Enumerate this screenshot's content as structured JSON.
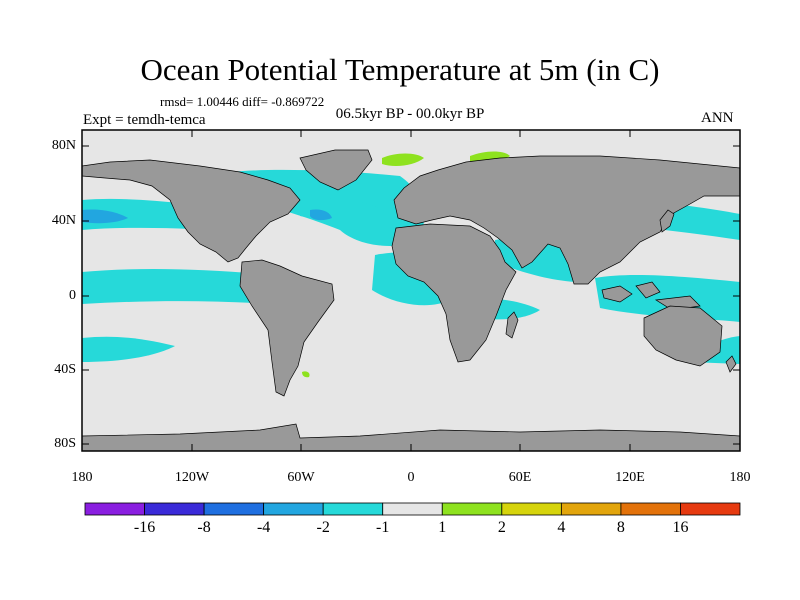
{
  "title": "Ocean Potential Temperature at 5m (in C)",
  "stats_line": "rmsd= 1.00446 diff= -0.869722",
  "experiment_label": "Expt = temdh-temca",
  "period_label": "06.5kyr BP - 00.0kyr BP",
  "season_label": "ANN",
  "lat_ticks": [
    {
      "label": "80N"
    },
    {
      "label": "40N"
    },
    {
      "label": "0"
    },
    {
      "label": "40S"
    },
    {
      "label": "80S"
    }
  ],
  "lon_ticks": [
    {
      "label": "180"
    },
    {
      "label": "120W"
    },
    {
      "label": "60W"
    },
    {
      "label": "0"
    },
    {
      "label": "60E"
    },
    {
      "label": "120E"
    },
    {
      "label": "180"
    }
  ],
  "colorbar": {
    "colors": [
      "#8a1ee0",
      "#3a2ad8",
      "#1f6fe0",
      "#22a6e0",
      "#26d9d9",
      "#e6e6e6",
      "#8ee21f",
      "#d6d40c",
      "#e2a50c",
      "#e3720a",
      "#e63a10"
    ],
    "labels": [
      "-16",
      "-8",
      "-4",
      "-2",
      "-1",
      "1",
      "2",
      "4",
      "8",
      "16"
    ]
  },
  "map_colors": {
    "land": "#999999",
    "ocean_neutral": "#e6e6e6",
    "cool_minus_2_to_minus_1": "#26d9d9",
    "cool_minus_4_to_minus_2": "#22a6e0",
    "warm_1_to_2": "#8ee21f"
  }
}
